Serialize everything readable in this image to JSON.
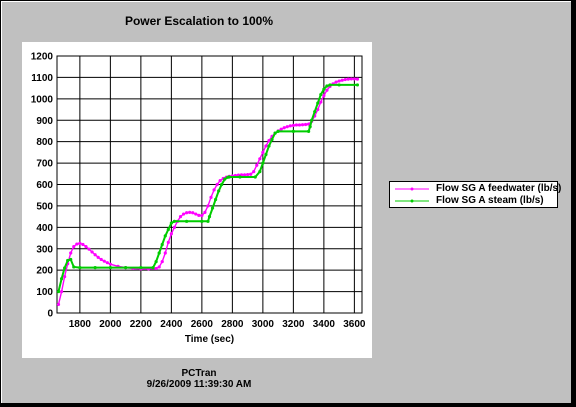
{
  "colors": {
    "background": "#c0c0c0",
    "feedwater": "#ff00ff",
    "steam": "#00cc00",
    "grid": "#000000"
  },
  "chart_data": {
    "type": "line",
    "title": "Power Escalation to 100%",
    "xlabel": "Time (sec)",
    "ylabel": "",
    "xlim": [
      1650,
      3650
    ],
    "ylim": [
      0,
      1200
    ],
    "xticks": [
      1800,
      2000,
      2200,
      2400,
      2600,
      2800,
      3000,
      3200,
      3400,
      3600
    ],
    "yticks": [
      0,
      100,
      200,
      300,
      400,
      500,
      600,
      700,
      800,
      900,
      1000,
      1100,
      1200
    ],
    "grid": true,
    "legend_position": "right",
    "series": [
      {
        "name": "Flow SG A feedwater (lb/s)",
        "color": "#ff00ff",
        "marker": "dot",
        "x": [
          1660,
          1680,
          1700,
          1720,
          1740,
          1760,
          1780,
          1800,
          1820,
          1840,
          1860,
          1880,
          1900,
          1920,
          1940,
          1960,
          1980,
          2000,
          2050,
          2100,
          2150,
          2200,
          2250,
          2300,
          2320,
          2340,
          2360,
          2380,
          2400,
          2420,
          2440,
          2460,
          2480,
          2500,
          2520,
          2540,
          2560,
          2580,
          2600,
          2620,
          2640,
          2660,
          2680,
          2700,
          2720,
          2740,
          2760,
          2780,
          2800,
          2820,
          2840,
          2860,
          2880,
          2900,
          2920,
          2940,
          2960,
          2980,
          3000,
          3020,
          3040,
          3060,
          3080,
          3100,
          3120,
          3140,
          3160,
          3180,
          3200,
          3220,
          3240,
          3260,
          3280,
          3300,
          3320,
          3340,
          3360,
          3380,
          3400,
          3420,
          3440,
          3460,
          3480,
          3500,
          3520,
          3540,
          3560,
          3580,
          3600,
          3620
        ],
        "y": [
          40,
          100,
          170,
          230,
          280,
          310,
          322,
          325,
          320,
          310,
          298,
          285,
          272,
          260,
          250,
          242,
          235,
          228,
          218,
          212,
          208,
          206,
          206,
          208,
          215,
          240,
          280,
          330,
          370,
          400,
          428,
          450,
          462,
          468,
          470,
          468,
          462,
          456,
          455,
          470,
          500,
          540,
          575,
          600,
          618,
          628,
          634,
          638,
          640,
          642,
          644,
          645,
          645,
          646,
          648,
          660,
          690,
          720,
          750,
          780,
          805,
          825,
          840,
          850,
          858,
          865,
          870,
          874,
          876,
          878,
          878,
          879,
          880,
          882,
          895,
          920,
          950,
          985,
          1015,
          1040,
          1058,
          1070,
          1078,
          1083,
          1087,
          1090,
          1092,
          1093,
          1093,
          1092
        ]
      },
      {
        "name": "Flow SG A steam (lb/s)",
        "color": "#00cc00",
        "marker": "dot",
        "x": [
          1660,
          1680,
          1700,
          1720,
          1740,
          1760,
          1800,
          1900,
          2000,
          2100,
          2200,
          2280,
          2300,
          2320,
          2340,
          2360,
          2380,
          2400,
          2420,
          2500,
          2600,
          2640,
          2650,
          2670,
          2690,
          2710,
          2730,
          2750,
          2770,
          2780,
          2850,
          2950,
          2980,
          3000,
          3020,
          3040,
          3060,
          3080,
          3100,
          3200,
          3300,
          3310,
          3320,
          3340,
          3360,
          3380,
          3400,
          3420,
          3440,
          3500,
          3620
        ],
        "y": [
          100,
          160,
          210,
          245,
          250,
          215,
          212,
          212,
          212,
          212,
          212,
          212,
          240,
          280,
          320,
          360,
          390,
          420,
          428,
          428,
          428,
          428,
          450,
          490,
          530,
          570,
          600,
          625,
          634,
          635,
          635,
          635,
          660,
          700,
          740,
          780,
          810,
          840,
          848,
          848,
          848,
          870,
          900,
          940,
          980,
          1020,
          1045,
          1060,
          1065,
          1065,
          1065
        ]
      }
    ]
  },
  "footer": {
    "line1": "PCTran",
    "line2": "9/26/2009 11:39:30 AM"
  }
}
